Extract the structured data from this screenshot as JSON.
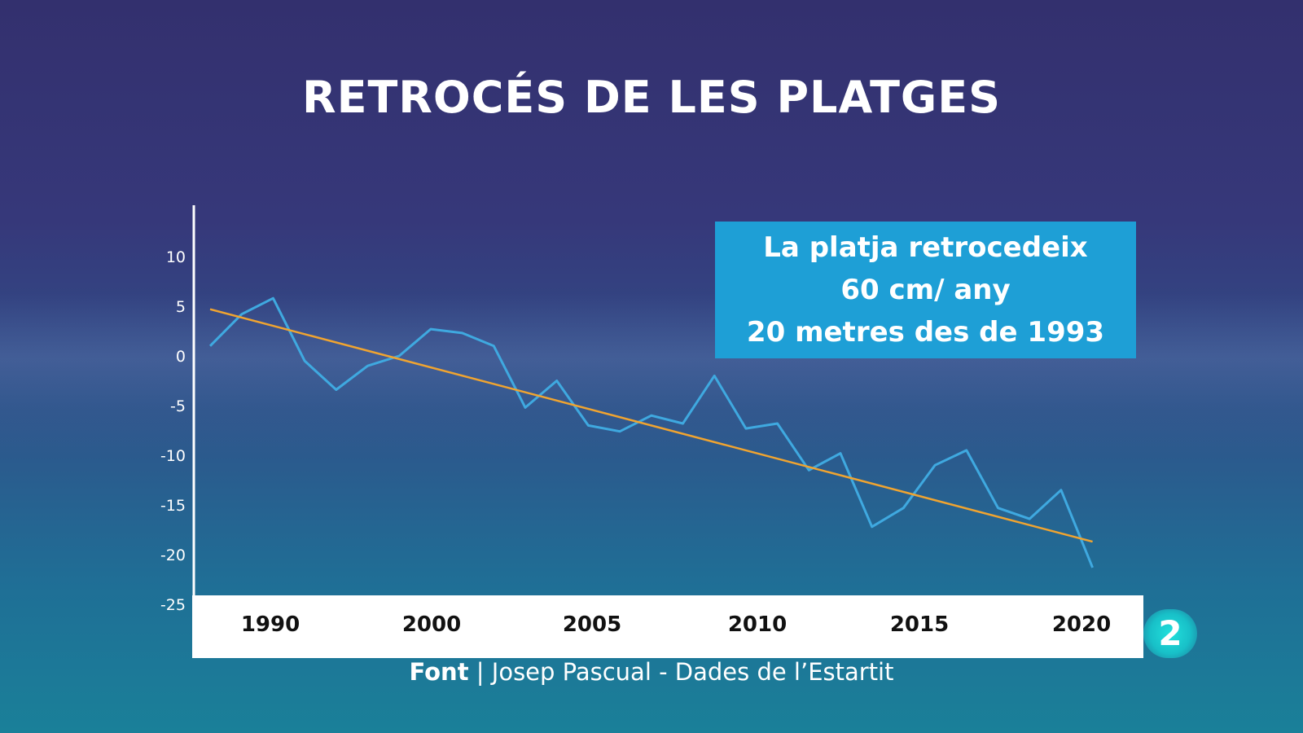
{
  "title": "RETROCÉS DE LES PLATGES",
  "callout": {
    "line1": "La platja retrocedeix",
    "line2": "60 cm/ any",
    "line3": "20 metres des de 1993"
  },
  "source": {
    "label": "Font",
    "separator": "|",
    "text": "Josep Pascual - Dades de l’Estartit"
  },
  "logo": "2",
  "chart_data": {
    "type": "line",
    "title": "RETROCÉS DE LES PLATGES",
    "xlabel": "",
    "ylabel": "",
    "x_ticks": [
      1990,
      2000,
      2005,
      2010,
      2015,
      2020
    ],
    "y_ticks": [
      10,
      5,
      0,
      -5,
      -10,
      -15,
      -20,
      -25
    ],
    "ylim": [
      -25,
      13
    ],
    "grid": false,
    "legend": "none",
    "series": [
      {
        "color": "#3fa9e0",
        "points": [
          [
            1987,
            1
          ],
          [
            1988,
            4.2
          ],
          [
            1989,
            5.8
          ],
          [
            1990,
            -0.5
          ],
          [
            1991,
            -3.4
          ],
          [
            1992,
            -1
          ],
          [
            1993,
            0
          ],
          [
            1994,
            2.7
          ],
          [
            1995,
            2.3
          ],
          [
            1996,
            1
          ],
          [
            1997,
            -5.2
          ],
          [
            1998,
            -2.5
          ],
          [
            1999,
            -7
          ],
          [
            2000,
            -7.6
          ],
          [
            2001,
            -6
          ],
          [
            2002,
            -6.8
          ],
          [
            2003,
            -2
          ],
          [
            2004,
            -7.3
          ],
          [
            2005,
            -6.8
          ],
          [
            2006,
            -11.5
          ],
          [
            2007,
            -9.8
          ],
          [
            2008,
            -17.2
          ],
          [
            2009,
            -15.3
          ],
          [
            2010,
            -11
          ],
          [
            2011,
            -9.5
          ],
          [
            2012,
            -15.3
          ],
          [
            2013,
            -16.4
          ],
          [
            2014,
            -13.5
          ],
          [
            2015,
            -21.3
          ]
        ]
      },
      {
        "color": "#f0a430",
        "points": [
          [
            1987,
            4.7
          ],
          [
            2015,
            -18.7
          ]
        ]
      }
    ]
  }
}
